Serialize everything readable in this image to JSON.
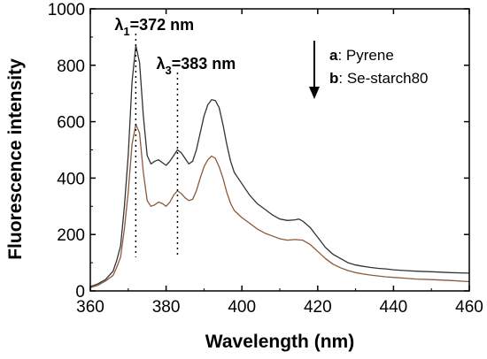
{
  "chart_data": {
    "type": "line",
    "xlabel": "Wavelength (nm)",
    "ylabel": "Fluorescence intensity",
    "xlim": [
      360,
      460
    ],
    "ylim": [
      0,
      1000
    ],
    "x_ticks": [
      360,
      380,
      400,
      420,
      440,
      460
    ],
    "y_ticks": [
      0,
      200,
      400,
      600,
      800,
      1000
    ],
    "grid": false,
    "legend_placement": "top-right",
    "legend": [
      {
        "key": "a",
        "label": ": Pyrene"
      },
      {
        "key": "b",
        "label": ": Se-starch80"
      }
    ],
    "annotations": [
      {
        "base": "λ",
        "sub": "1",
        "text": "=372 nm",
        "x": 372
      },
      {
        "base": "λ",
        "sub": "3",
        "text": "=383 nm",
        "x": 383
      }
    ],
    "series": [
      {
        "name": "a",
        "color": "#333333",
        "points": [
          [
            360,
            15
          ],
          [
            362,
            25
          ],
          [
            364,
            40
          ],
          [
            366,
            70
          ],
          [
            367,
            110
          ],
          [
            368,
            160
          ],
          [
            369,
            300
          ],
          [
            370,
            480
          ],
          [
            371,
            740
          ],
          [
            372,
            870
          ],
          [
            373,
            810
          ],
          [
            374,
            620
          ],
          [
            375,
            480
          ],
          [
            376,
            450
          ],
          [
            377,
            460
          ],
          [
            378,
            465
          ],
          [
            379,
            455
          ],
          [
            380,
            445
          ],
          [
            381,
            460
          ],
          [
            382,
            480
          ],
          [
            383,
            500
          ],
          [
            384,
            490
          ],
          [
            385,
            470
          ],
          [
            386,
            450
          ],
          [
            387,
            460
          ],
          [
            388,
            500
          ],
          [
            389,
            560
          ],
          [
            390,
            620
          ],
          [
            391,
            660
          ],
          [
            392,
            678
          ],
          [
            393,
            675
          ],
          [
            394,
            650
          ],
          [
            395,
            590
          ],
          [
            396,
            520
          ],
          [
            397,
            460
          ],
          [
            398,
            420
          ],
          [
            400,
            380
          ],
          [
            402,
            340
          ],
          [
            404,
            310
          ],
          [
            406,
            290
          ],
          [
            408,
            270
          ],
          [
            410,
            255
          ],
          [
            412,
            250
          ],
          [
            414,
            252
          ],
          [
            415,
            255
          ],
          [
            416,
            248
          ],
          [
            418,
            225
          ],
          [
            420,
            190
          ],
          [
            422,
            155
          ],
          [
            424,
            130
          ],
          [
            426,
            115
          ],
          [
            428,
            100
          ],
          [
            430,
            92
          ],
          [
            432,
            87
          ],
          [
            434,
            83
          ],
          [
            436,
            80
          ],
          [
            438,
            78
          ],
          [
            440,
            75
          ],
          [
            443,
            72
          ],
          [
            446,
            70
          ],
          [
            450,
            68
          ],
          [
            455,
            65
          ],
          [
            460,
            63
          ]
        ]
      },
      {
        "name": "b",
        "color": "#8b5a3c",
        "points": [
          [
            360,
            12
          ],
          [
            362,
            20
          ],
          [
            364,
            35
          ],
          [
            366,
            55
          ],
          [
            367,
            85
          ],
          [
            368,
            120
          ],
          [
            369,
            220
          ],
          [
            370,
            350
          ],
          [
            371,
            520
          ],
          [
            372,
            590
          ],
          [
            373,
            560
          ],
          [
            374,
            420
          ],
          [
            375,
            320
          ],
          [
            376,
            300
          ],
          [
            377,
            305
          ],
          [
            378,
            315
          ],
          [
            379,
            310
          ],
          [
            380,
            300
          ],
          [
            381,
            315
          ],
          [
            382,
            340
          ],
          [
            383,
            355
          ],
          [
            384,
            345
          ],
          [
            385,
            330
          ],
          [
            386,
            320
          ],
          [
            387,
            325
          ],
          [
            388,
            355
          ],
          [
            389,
            400
          ],
          [
            390,
            440
          ],
          [
            391,
            465
          ],
          [
            392,
            478
          ],
          [
            393,
            470
          ],
          [
            394,
            440
          ],
          [
            395,
            400
          ],
          [
            396,
            350
          ],
          [
            397,
            310
          ],
          [
            398,
            285
          ],
          [
            400,
            260
          ],
          [
            402,
            240
          ],
          [
            404,
            220
          ],
          [
            406,
            205
          ],
          [
            408,
            195
          ],
          [
            410,
            185
          ],
          [
            412,
            180
          ],
          [
            414,
            182
          ],
          [
            416,
            180
          ],
          [
            418,
            165
          ],
          [
            420,
            140
          ],
          [
            422,
            115
          ],
          [
            424,
            95
          ],
          [
            426,
            82
          ],
          [
            428,
            72
          ],
          [
            430,
            65
          ],
          [
            432,
            60
          ],
          [
            434,
            56
          ],
          [
            436,
            53
          ],
          [
            438,
            50
          ],
          [
            440,
            48
          ],
          [
            443,
            45
          ],
          [
            446,
            42
          ],
          [
            450,
            40
          ],
          [
            455,
            37
          ],
          [
            460,
            33
          ]
        ]
      }
    ]
  }
}
